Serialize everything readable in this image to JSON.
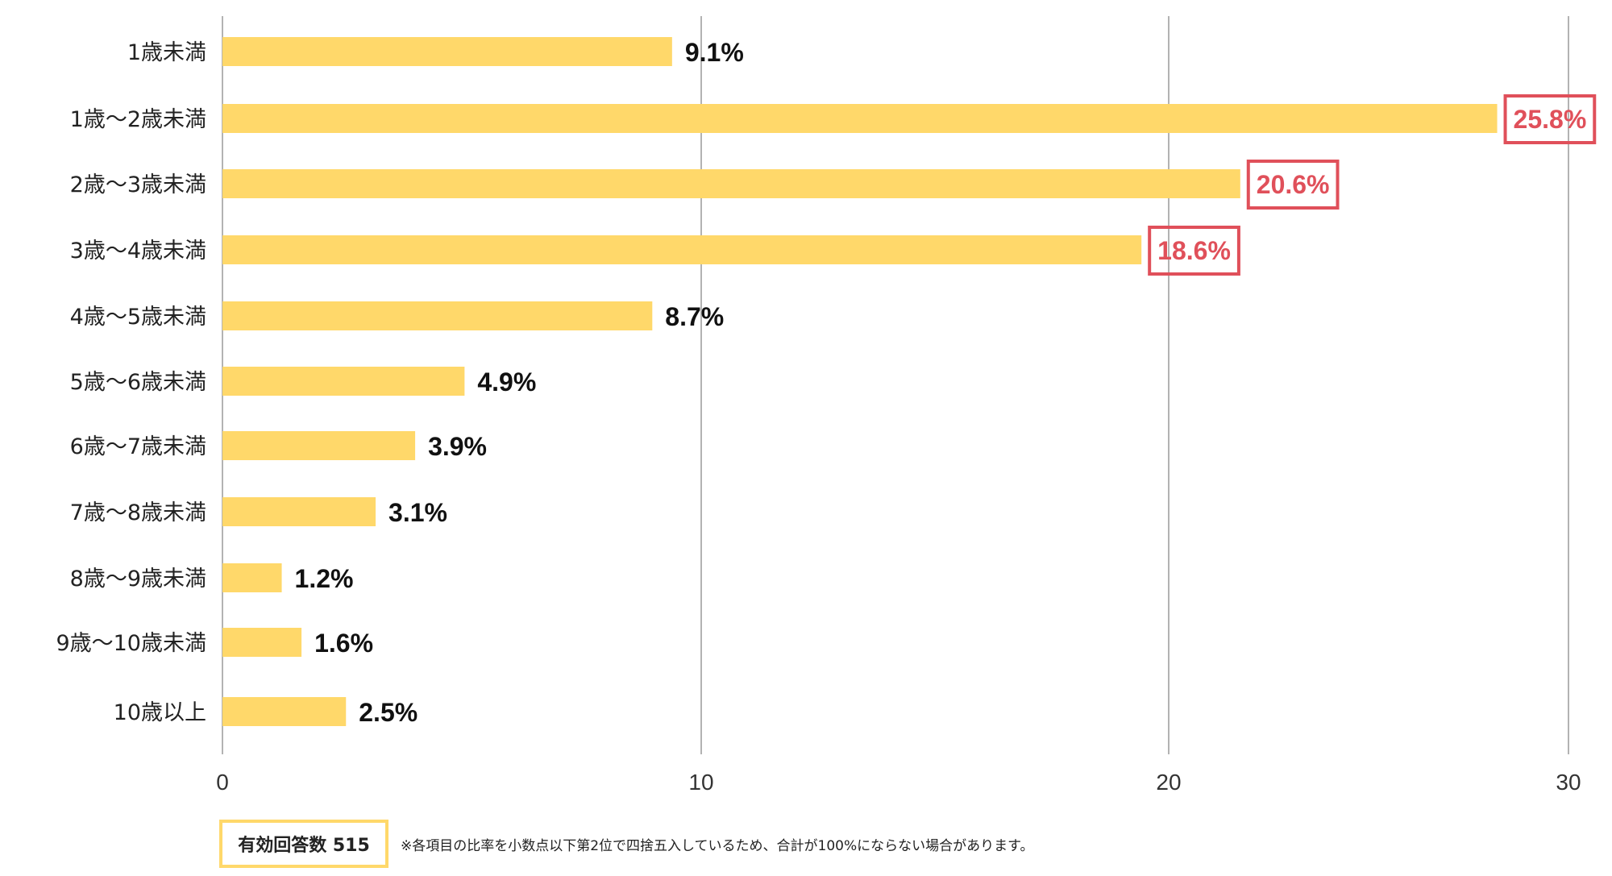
{
  "chart_data": {
    "type": "bar",
    "orientation": "horizontal",
    "categories": [
      "1歳未満",
      "1歳～2歳未満",
      "2歳～3歳未満",
      "3歳～4歳未満",
      "4歳～5歳未満",
      "5歳～6歳未満",
      "6歳～7歳未満",
      "7歳～8歳未満",
      "8歳～9歳未満",
      "9歳～10歳未満",
      "10歳以上"
    ],
    "values": [
      9.1,
      25.8,
      20.6,
      18.6,
      8.7,
      4.9,
      3.9,
      3.1,
      1.2,
      1.6,
      2.5
    ],
    "data_labels": [
      "9.1%",
      "25.8%",
      "20.6%",
      "18.6%",
      "8.7%",
      "4.9%",
      "3.9%",
      "3.1%",
      "1.2%",
      "1.6%",
      "2.5%"
    ],
    "highlighted": [
      false,
      true,
      true,
      true,
      false,
      false,
      false,
      false,
      false,
      false,
      false
    ],
    "xticks": [
      "0",
      "10",
      "20",
      "30"
    ],
    "xlim": [
      0,
      30
    ],
    "grid": "vertical",
    "bar_color": "#ffd86a",
    "highlight_color": "#e0505a",
    "title": "",
    "xlabel": "",
    "ylabel": ""
  },
  "footer": {
    "respondents": "有効回答数 515",
    "note": "※各項目の比率を小数点以下第2位で四捨五入しているため、合計が100%にならない場合があります。"
  }
}
